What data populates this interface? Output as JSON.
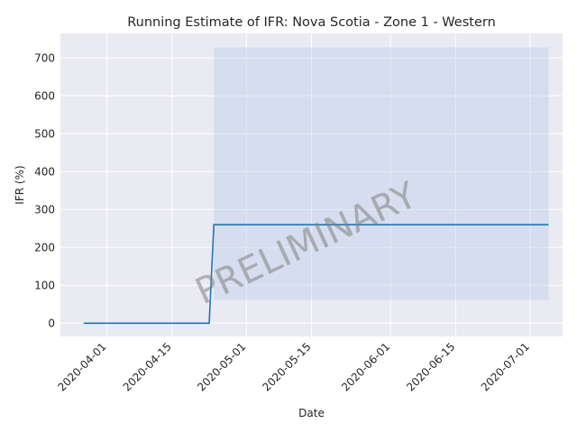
{
  "chart_data": {
    "type": "line",
    "title": "Running Estimate of IFR: Nova Scotia - Zone 1 - Western",
    "xlabel": "Date",
    "ylabel": "IFR (%)",
    "watermark": "PRELIMINARY",
    "x_ticks": [
      "2020-04-01",
      "2020-04-15",
      "2020-05-01",
      "2020-05-15",
      "2020-06-01",
      "2020-06-15",
      "2020-07-01"
    ],
    "y_ticks": [
      0,
      100,
      200,
      300,
      400,
      500,
      600,
      700
    ],
    "ylim": [
      -35,
      765
    ],
    "xlim": [
      "2020-03-22",
      "2020-07-08"
    ],
    "grid": true,
    "colors": {
      "line": "#1f77b4",
      "band": "#aec7e8",
      "background": "#eaeaf2",
      "grid": "#ffffff"
    },
    "series": [
      {
        "x": [
          "2020-03-27",
          "2020-04-23",
          "2020-04-24",
          "2020-07-05"
        ],
        "y": [
          0,
          0,
          260,
          260
        ]
      }
    ],
    "band": {
      "x": [
        "2020-04-24",
        "2020-07-05"
      ],
      "lower": [
        62,
        62
      ],
      "upper": [
        728,
        728
      ]
    }
  }
}
